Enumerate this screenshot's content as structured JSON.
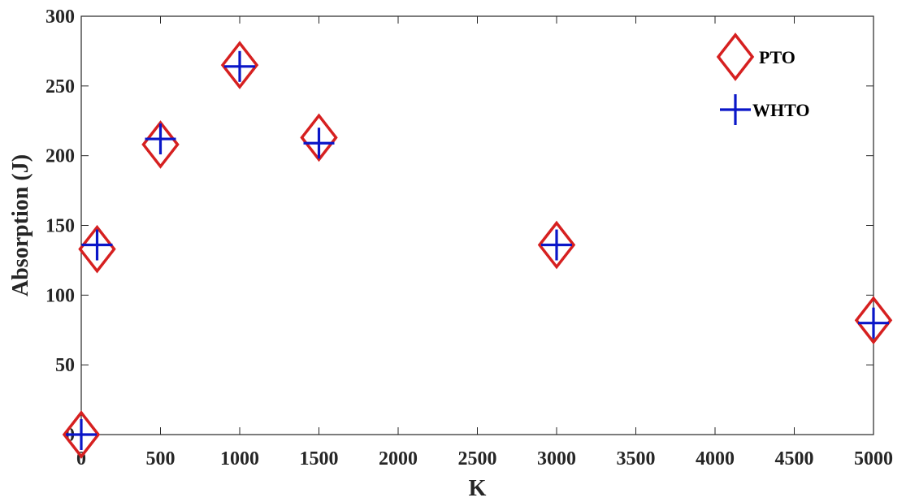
{
  "chart_data": {
    "type": "scatter",
    "title": "",
    "xlabel": "K",
    "ylabel": "Absorption (J)",
    "xlim": [
      0,
      5000
    ],
    "ylim": [
      0,
      300
    ],
    "xticks": [
      0,
      500,
      1000,
      1500,
      2000,
      2500,
      3000,
      3500,
      4000,
      4500,
      5000
    ],
    "yticks": [
      0,
      50,
      100,
      150,
      200,
      250,
      300
    ],
    "xtick_labels": [
      "0",
      "500",
      "1000",
      "1500",
      "2000",
      "2500",
      "3000",
      "3500",
      "4000",
      "4500",
      "5000"
    ],
    "ytick_labels": [
      "0",
      "50",
      "100",
      "150",
      "200",
      "250",
      "300"
    ],
    "grid": false,
    "legend_position": "top-right",
    "series": [
      {
        "name": "PTO",
        "marker": "diamond",
        "color": "#d62020",
        "x": [
          0,
          100,
          500,
          1000,
          1500,
          3000,
          5000
        ],
        "y": [
          0,
          133,
          208,
          265,
          213,
          136,
          82
        ]
      },
      {
        "name": "WHTO",
        "marker": "plus",
        "color": "#0a16c8",
        "x": [
          0,
          100,
          500,
          1000,
          1500,
          3000,
          5000
        ],
        "y": [
          0,
          136,
          212,
          264,
          209,
          136,
          80
        ]
      }
    ]
  }
}
